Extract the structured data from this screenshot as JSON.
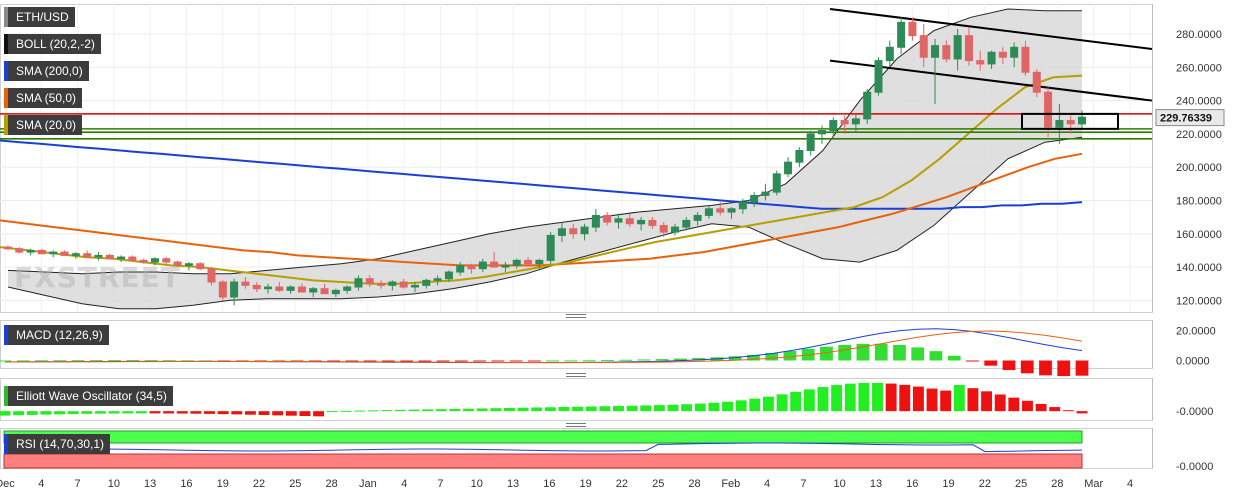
{
  "labels": {
    "pair": "ETH/USD",
    "boll": "BOLL (20,2,-2)",
    "sma200": "SMA (200,0)",
    "sma50": "SMA (50,0)",
    "sma20": "SMA (20,0)",
    "macd": "MACD (12,26,9)",
    "ewo": "Elliott Wave Oscillator (34,5)",
    "rsi": "RSI (14,70,30,1)",
    "watermark": "FXSTREET"
  },
  "colors": {
    "sma200": "#1a3fd6",
    "sma50": "#e8620e",
    "sma20": "#b5a000",
    "up": "#2e8b57",
    "down": "#e06666",
    "band": "#d9d9d9",
    "resistance": "#d40000",
    "support": "#2e7d00",
    "rsi_over": "#4cff4c",
    "rsi_under": "#ff7f7f"
  },
  "chart_data": [
    {
      "type": "candlestick",
      "title": "ETH/USD",
      "last_price": "229.76339",
      "ylim": [
        113,
        298
      ],
      "yticks": [
        "280.0000",
        "260.0000",
        "240.0000",
        "220.0000",
        "200.0000",
        "180.0000",
        "160.0000",
        "140.0000",
        "120.0000"
      ],
      "ytick_values": [
        280,
        260,
        240,
        220,
        200,
        180,
        160,
        140,
        120
      ],
      "xticks": [
        "Dec",
        "4",
        "7",
        "10",
        "13",
        "16",
        "19",
        "22",
        "25",
        "28",
        "Jan",
        "4",
        "7",
        "10",
        "13",
        "16",
        "19",
        "22",
        "25",
        "28",
        "Feb",
        "4",
        "7",
        "10",
        "13",
        "16",
        "19",
        "22",
        "25",
        "28",
        "Mar",
        "4"
      ],
      "horizontal_levels": [
        232,
        223,
        221,
        217
      ],
      "candles": [
        [
          152,
          153,
          150,
          151
        ],
        [
          151,
          152,
          148,
          149
        ],
        [
          149,
          151,
          147,
          150
        ],
        [
          150,
          151,
          148,
          148
        ],
        [
          148,
          150,
          146,
          149
        ],
        [
          149,
          150,
          147,
          147
        ],
        [
          147,
          149,
          145,
          148
        ],
        [
          148,
          150,
          146,
          146
        ],
        [
          146,
          149,
          144,
          147
        ],
        [
          147,
          148,
          145,
          145
        ],
        [
          145,
          147,
          143,
          146
        ],
        [
          146,
          147,
          144,
          144
        ],
        [
          144,
          145,
          142,
          143
        ],
        [
          143,
          146,
          141,
          145
        ],
        [
          145,
          146,
          142,
          143
        ],
        [
          143,
          144,
          140,
          141
        ],
        [
          141,
          143,
          138,
          142
        ],
        [
          142,
          143,
          138,
          139
        ],
        [
          139,
          140,
          129,
          131
        ],
        [
          131,
          132,
          120,
          122
        ],
        [
          122,
          133,
          117,
          131
        ],
        [
          131,
          134,
          127,
          129
        ],
        [
          129,
          131,
          125,
          127
        ],
        [
          127,
          130,
          124,
          128
        ],
        [
          128,
          131,
          125,
          126
        ],
        [
          126,
          129,
          124,
          128
        ],
        [
          128,
          130,
          125,
          125
        ],
        [
          125,
          128,
          122,
          127
        ],
        [
          127,
          130,
          124,
          124
        ],
        [
          124,
          127,
          122,
          126
        ],
        [
          126,
          129,
          124,
          128
        ],
        [
          128,
          135,
          126,
          133
        ],
        [
          133,
          135,
          128,
          130
        ],
        [
          130,
          132,
          127,
          129
        ],
        [
          129,
          132,
          126,
          131
        ],
        [
          131,
          133,
          127,
          128
        ],
        [
          128,
          131,
          125,
          129
        ],
        [
          129,
          133,
          127,
          132
        ],
        [
          132,
          135,
          129,
          133
        ],
        [
          133,
          138,
          131,
          137
        ],
        [
          137,
          143,
          135,
          141
        ],
        [
          141,
          142,
          136,
          139
        ],
        [
          139,
          145,
          137,
          143
        ],
        [
          143,
          149,
          140,
          140
        ],
        [
          140,
          143,
          137,
          141
        ],
        [
          141,
          145,
          139,
          144
        ],
        [
          144,
          146,
          140,
          142
        ],
        [
          142,
          145,
          139,
          144
        ],
        [
          144,
          161,
          142,
          159
        ],
        [
          159,
          167,
          155,
          163
        ],
        [
          163,
          166,
          157,
          160
        ],
        [
          160,
          166,
          156,
          164
        ],
        [
          164,
          175,
          161,
          171
        ],
        [
          171,
          173,
          165,
          167
        ],
        [
          167,
          172,
          163,
          169
        ],
        [
          169,
          172,
          164,
          166
        ],
        [
          166,
          170,
          162,
          168
        ],
        [
          168,
          170,
          163,
          165
        ],
        [
          165,
          167,
          158,
          161
        ],
        [
          161,
          166,
          159,
          164
        ],
        [
          164,
          170,
          162,
          168
        ],
        [
          168,
          173,
          165,
          171
        ],
        [
          171,
          177,
          169,
          175
        ],
        [
          175,
          179,
          171,
          173
        ],
        [
          173,
          176,
          169,
          175
        ],
        [
          175,
          181,
          172,
          179
        ],
        [
          179,
          185,
          176,
          183
        ],
        [
          183,
          190,
          180,
          185
        ],
        [
          185,
          198,
          183,
          196
        ],
        [
          196,
          206,
          194,
          203
        ],
        [
          203,
          212,
          200,
          210
        ],
        [
          210,
          222,
          207,
          220
        ],
        [
          220,
          225,
          214,
          222
        ],
        [
          222,
          230,
          218,
          228
        ],
        [
          228,
          231,
          220,
          226
        ],
        [
          226,
          232,
          221,
          229
        ],
        [
          229,
          247,
          226,
          245
        ],
        [
          245,
          266,
          243,
          264
        ],
        [
          264,
          276,
          260,
          272
        ],
        [
          272,
          290,
          268,
          287
        ],
        [
          287,
          290,
          276,
          279
        ],
        [
          279,
          286,
          260,
          266
        ],
        [
          266,
          277,
          238,
          273
        ],
        [
          273,
          276,
          263,
          265
        ],
        [
          265,
          283,
          258,
          279
        ],
        [
          279,
          284,
          261,
          264
        ],
        [
          264,
          270,
          258,
          262
        ],
        [
          262,
          270,
          259,
          269
        ],
        [
          269,
          272,
          262,
          266
        ],
        [
          266,
          275,
          260,
          272
        ],
        [
          272,
          276,
          255,
          257
        ],
        [
          257,
          259,
          242,
          245
        ],
        [
          245,
          248,
          218,
          224
        ],
        [
          224,
          238,
          214,
          228
        ],
        [
          228,
          231,
          220,
          226
        ],
        [
          226,
          234,
          223,
          230
        ]
      ],
      "series": [
        {
          "name": "SMA (200,0)",
          "values": [
            216,
            215,
            214,
            213,
            212,
            211,
            210,
            209,
            208,
            207,
            206,
            205,
            204,
            203,
            202,
            201,
            200,
            199,
            198,
            197,
            196,
            195,
            194,
            193,
            192,
            191,
            190,
            189,
            188,
            187,
            186,
            185,
            184,
            183,
            182,
            181,
            180,
            179,
            178,
            177,
            176,
            175,
            175,
            175,
            175,
            175,
            175,
            175,
            176,
            176,
            177,
            177,
            178,
            178,
            179
          ]
        },
        {
          "name": "SMA (50,0)",
          "values": [
            168,
            166,
            164,
            162,
            160,
            158,
            156,
            154,
            152,
            150,
            149,
            147,
            146,
            145,
            144,
            143,
            142,
            141,
            141,
            141,
            141,
            142,
            143,
            144,
            145,
            147,
            149,
            152,
            155,
            158,
            161,
            164,
            168,
            172,
            177,
            182,
            188,
            194,
            200,
            205,
            208
          ]
        },
        {
          "name": "SMA (20,0)",
          "values": [
            152,
            150,
            148,
            146,
            145,
            143,
            141,
            140,
            138,
            136,
            134,
            132,
            131,
            130,
            130,
            131,
            132,
            134,
            137,
            140,
            143,
            147,
            151,
            155,
            158,
            161,
            164,
            167,
            170,
            173,
            176,
            182,
            192,
            205,
            220,
            235,
            248,
            254,
            255
          ]
        }
      ],
      "bollinger_upper": [
        138,
        137,
        136,
        137,
        137,
        136,
        136,
        138,
        140,
        142,
        145,
        150,
        155,
        160,
        164,
        167,
        170,
        173,
        175,
        177,
        180,
        190,
        210,
        240,
        265,
        282,
        290,
        295,
        294,
        294
      ],
      "bollinger_lower": [
        128,
        123,
        118,
        115,
        115,
        117,
        120,
        121,
        121,
        121,
        122,
        124,
        127,
        131,
        136,
        143,
        149,
        155,
        161,
        166,
        164,
        154,
        145,
        143,
        150,
        165,
        185,
        205,
        215,
        218
      ]
    },
    {
      "type": "line",
      "title": "MACD (12,26,9)",
      "yticks": [
        "20.0000",
        "0.0000"
      ],
      "ytick_values": [
        20,
        0
      ]
    },
    {
      "type": "bar",
      "title": "Elliott Wave Oscillator (34,5)",
      "yticks": [
        "-0.0000"
      ],
      "ytick_values": [
        0
      ]
    },
    {
      "type": "line",
      "title": "RSI (14,70,30,1)",
      "yticks": [
        "-0.0000"
      ],
      "ytick_values": [
        0
      ]
    }
  ]
}
